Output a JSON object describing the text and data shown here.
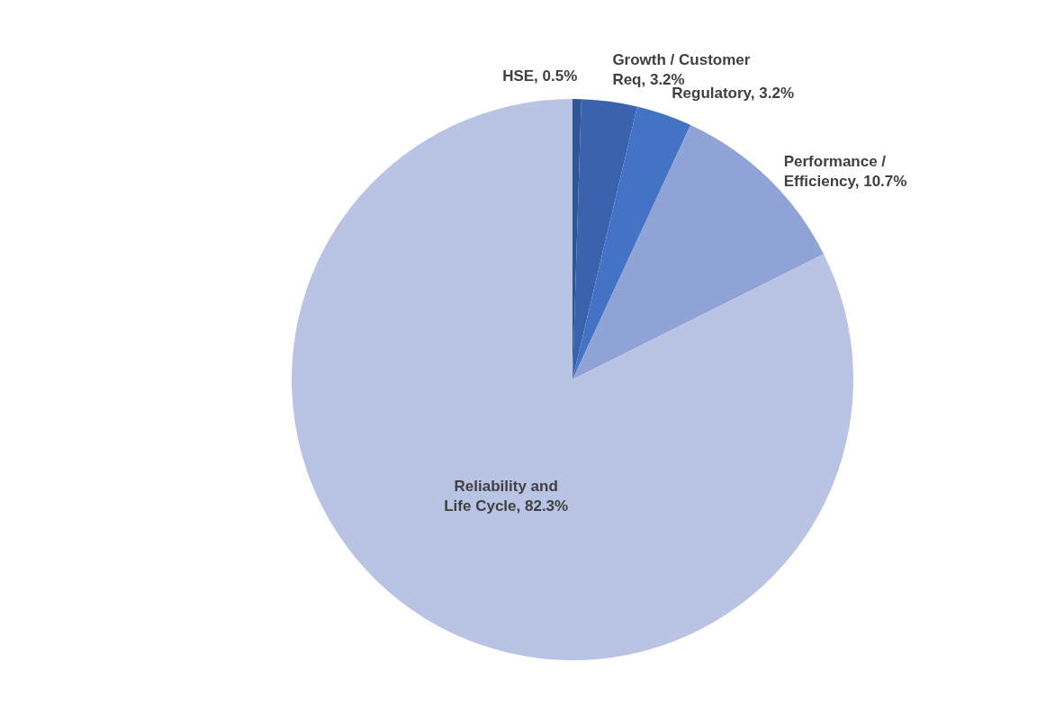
{
  "chart_data": {
    "type": "pie",
    "categories": [
      "HSE",
      "Growth / Customer Req",
      "Regulatory",
      "Performance / Efficiency",
      "Reliability and Life Cycle"
    ],
    "values": [
      0.5,
      3.2,
      3.2,
      10.7,
      82.3
    ],
    "value_labels": [
      "0.5%",
      "3.2%",
      "3.2%",
      "10.7%",
      "82.3%"
    ],
    "colors": [
      "#2f5597",
      "#3a62ad",
      "#4472c4",
      "#8fa3d6",
      "#b9c3e3"
    ]
  }
}
